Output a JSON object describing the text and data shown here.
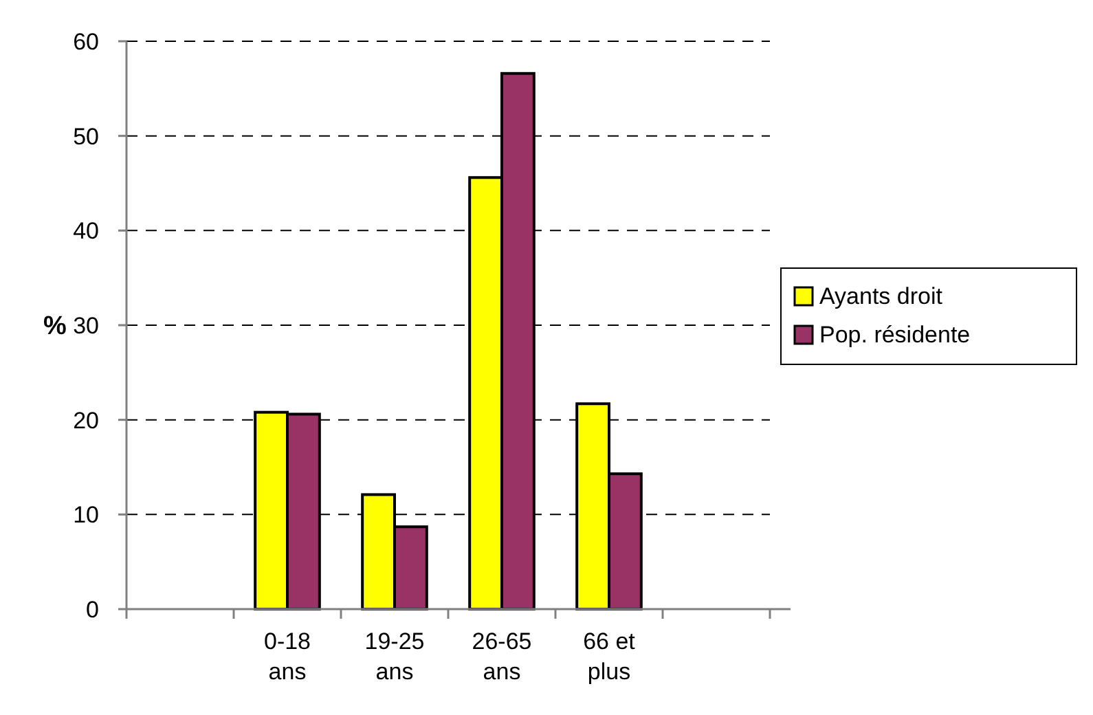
{
  "chart_data": {
    "type": "bar",
    "ylabel": "%",
    "categories": [
      null,
      "0-18 ans",
      "19-25 ans",
      "26-65 ans",
      "66 et plus",
      null
    ],
    "series": [
      {
        "name": "Ayants droit",
        "color": "#ffff00",
        "values": [
          null,
          20.8,
          12.1,
          45.6,
          21.7,
          null
        ]
      },
      {
        "name": "Pop. résidente",
        "color": "#993366",
        "values": [
          null,
          20.6,
          8.7,
          56.6,
          14.3,
          null
        ]
      }
    ],
    "ylim": [
      0,
      60
    ],
    "yticks": [
      0,
      10,
      20,
      30,
      40,
      50,
      60
    ],
    "grid": "y",
    "legend": "right"
  }
}
